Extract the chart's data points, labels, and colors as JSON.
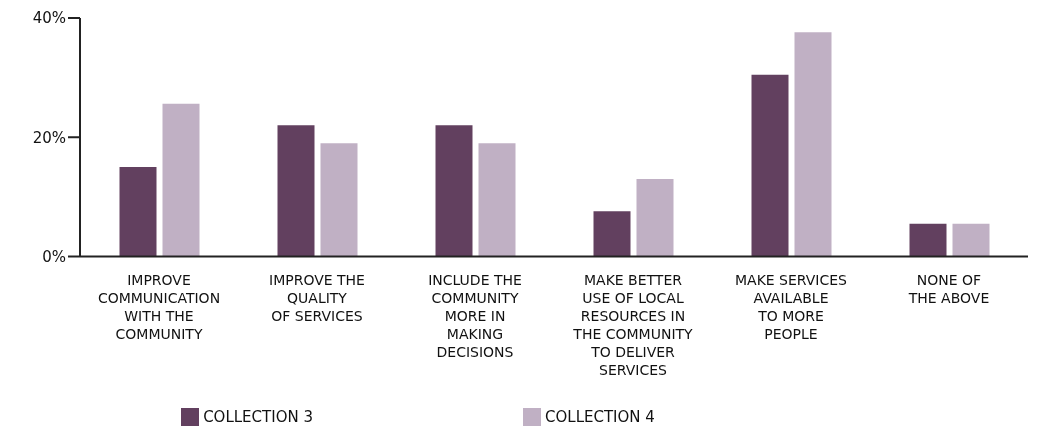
{
  "chart_data": {
    "type": "bar",
    "categories": [
      "IMPROVE\nCOMMUNICATION\nWITH THE\nCOMMUNITY",
      "IMPROVE THE\nQUALITY\nOF SERVICES",
      "INCLUDE THE\nCOMMUNITY\nMORE IN\nMAKING\nDECISIONS",
      "MAKE BETTER\nUSE OF LOCAL\nRESOURCES IN\nTHE COMMUNITY\nTO DELIVER\nSERVICES",
      "MAKE SERVICES\nAVAILABLE\nTO MORE\nPEOPLE",
      "NONE OF\nTHE ABOVE"
    ],
    "series": [
      {
        "name": "COLLECTION 3",
        "color": "#62405f",
        "values": [
          15,
          22,
          22,
          7.6,
          30.5,
          5.5
        ]
      },
      {
        "name": "COLLECTION 4",
        "color": "#c0b0c4",
        "values": [
          25.6,
          19,
          19,
          13,
          37.6,
          5.5
        ]
      }
    ],
    "ylim": [
      0,
      40
    ],
    "yticks": [
      {
        "value": 0,
        "label": "0%"
      },
      {
        "value": 20,
        "label": "20%"
      },
      {
        "value": 40,
        "label": "40%"
      }
    ],
    "grid": false,
    "legend": "bottom"
  }
}
